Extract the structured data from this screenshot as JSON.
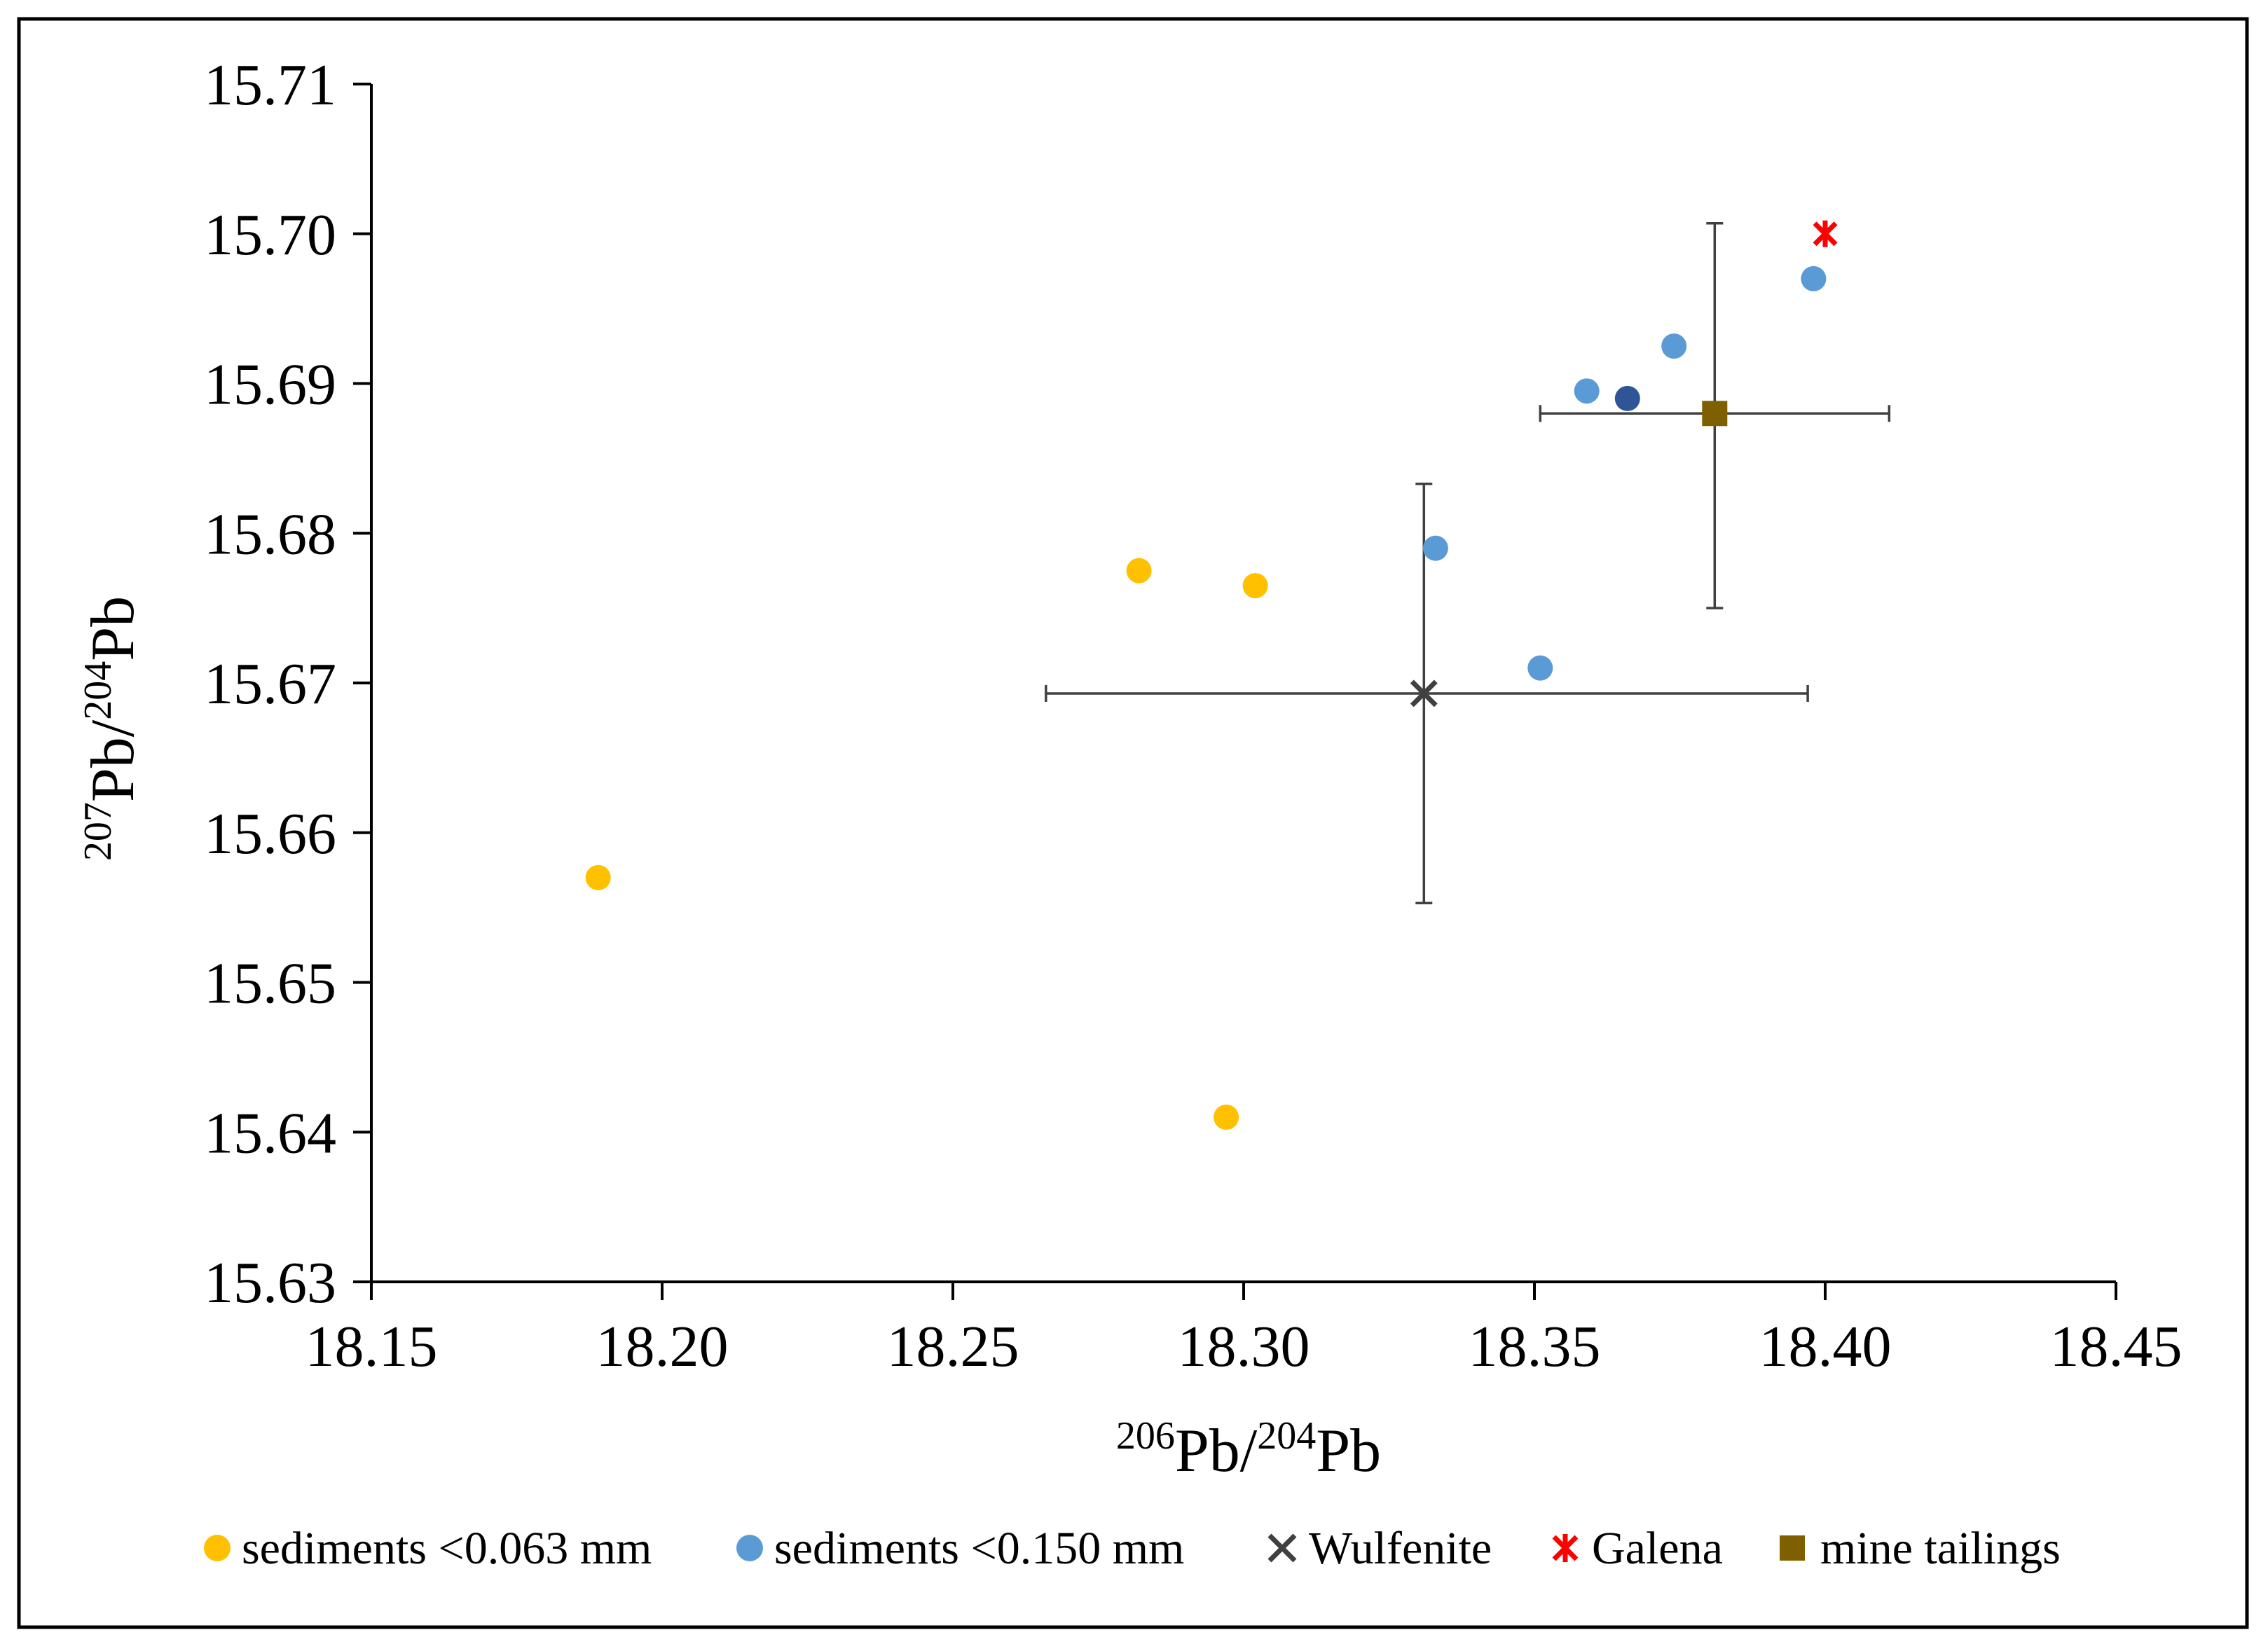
{
  "chart_data": {
    "type": "scatter",
    "title": "",
    "xlabel": {
      "sup1": "206",
      "base1": "Pb/",
      "sup2": "204",
      "base2": "Pb"
    },
    "ylabel": {
      "sup1": "207",
      "base1": "Pb/",
      "sup2": "204",
      "base2": "Pb"
    },
    "xlim": [
      18.15,
      18.45
    ],
    "ylim": [
      15.63,
      15.71
    ],
    "xticks": [
      18.15,
      18.2,
      18.25,
      18.3,
      18.35,
      18.4,
      18.45
    ],
    "xtick_labels": [
      "18.15",
      "18.20",
      "18.25",
      "18.30",
      "18.35",
      "18.40",
      "18.45"
    ],
    "yticks": [
      15.63,
      15.64,
      15.65,
      15.66,
      15.67,
      15.68,
      15.69,
      15.7,
      15.71
    ],
    "ytick_labels": [
      "15.63",
      "15.64",
      "15.65",
      "15.66",
      "15.67",
      "15.68",
      "15.69",
      "15.70",
      "15.71"
    ],
    "grid": false,
    "legend_position": "bottom",
    "series": [
      {
        "name": "sediments <0.063 mm",
        "marker": "circle",
        "color": "#FFC000",
        "points": [
          {
            "x": 18.189,
            "y": 15.657
          },
          {
            "x": 18.282,
            "y": 15.6775
          },
          {
            "x": 18.302,
            "y": 15.6765
          },
          {
            "x": 18.297,
            "y": 15.641
          }
        ]
      },
      {
        "name": "sediments <0.150 mm",
        "marker": "circle",
        "color": "#5B9BD5",
        "points": [
          {
            "x": 18.333,
            "y": 15.679
          },
          {
            "x": 18.351,
            "y": 15.671
          },
          {
            "x": 18.359,
            "y": 15.6895
          },
          {
            "x": 18.374,
            "y": 15.6925
          },
          {
            "x": 18.398,
            "y": 15.697
          },
          {
            "x": 18.366,
            "y": 15.689,
            "color": "#2F5597"
          }
        ]
      },
      {
        "name": "Wulfenite",
        "marker": "x",
        "color": "#404040",
        "points": [
          {
            "x": 18.331,
            "y": 15.6693,
            "xerr": [
              18.266,
              18.397
            ],
            "yerr": [
              15.6553,
              15.6833
            ]
          }
        ]
      },
      {
        "name": "Galena",
        "marker": "star",
        "color": "#FF0000",
        "points": [
          {
            "x": 18.4,
            "y": 15.7
          }
        ]
      },
      {
        "name": "mine tailings",
        "marker": "square",
        "color": "#7F6000",
        "points": [
          {
            "x": 18.381,
            "y": 15.688,
            "xerr": [
              18.351,
              18.411
            ],
            "yerr": [
              15.675,
              15.7007
            ]
          }
        ]
      }
    ],
    "frame_color": "#000000",
    "axis_color": "#000000",
    "errorbar_color": "#404040"
  }
}
